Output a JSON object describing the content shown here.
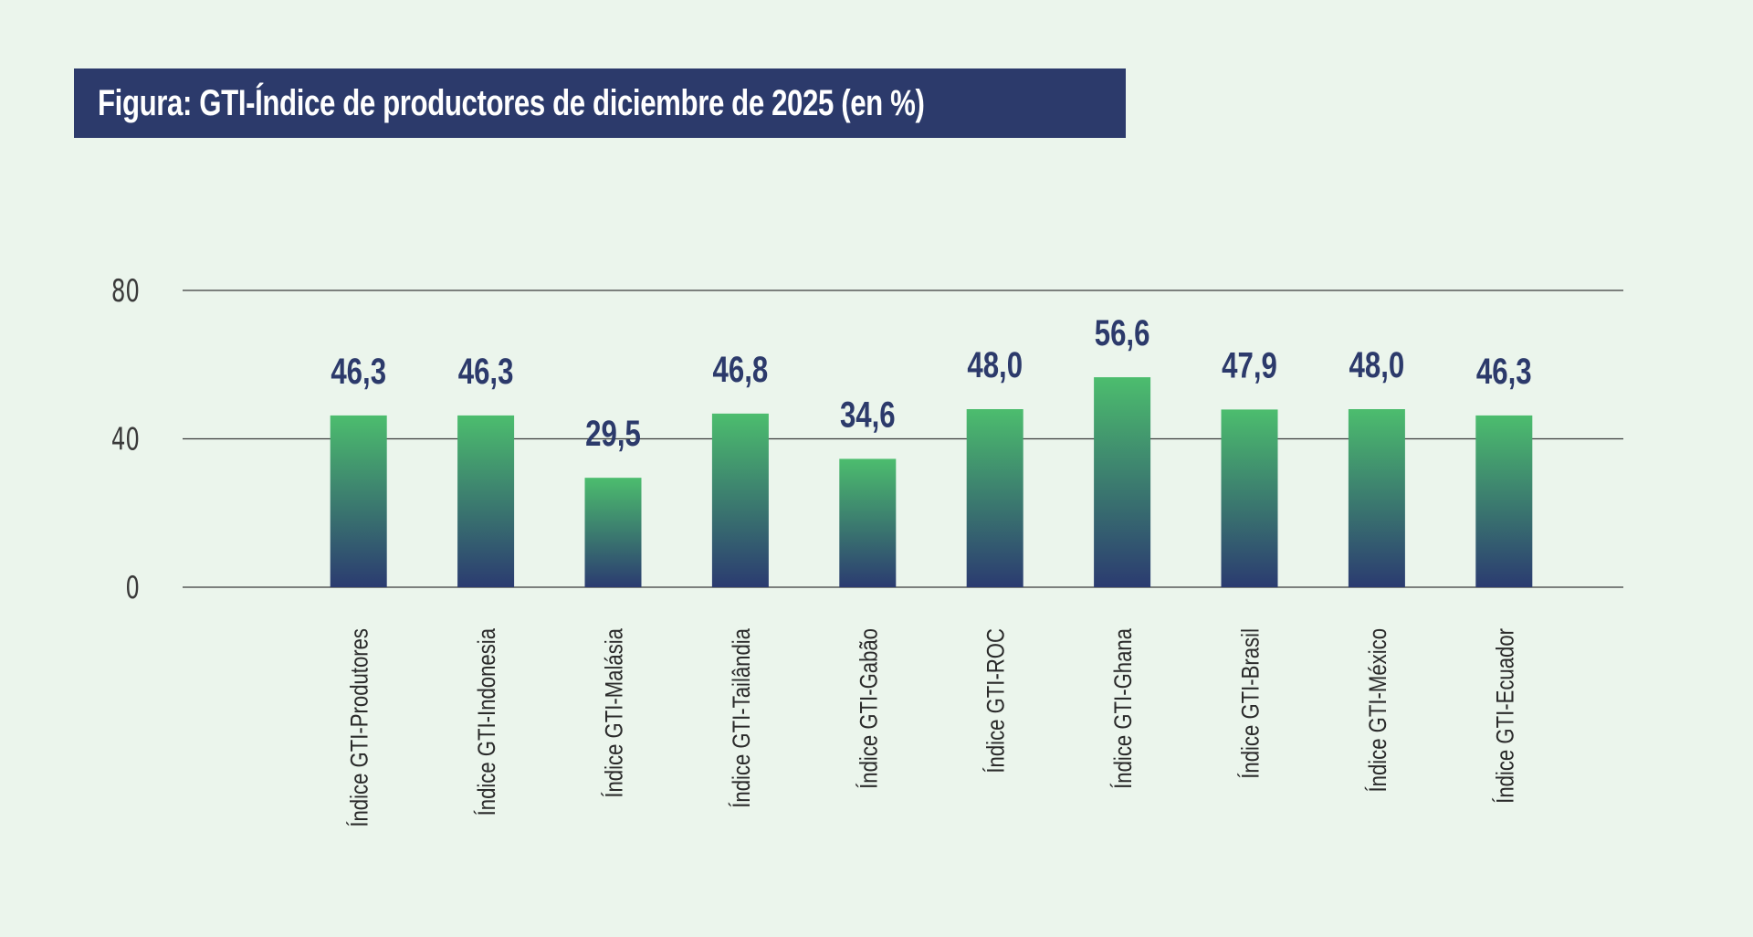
{
  "title": "Figura: GTI-Índice de productores de diciembre de 2025 (en %)",
  "colors": {
    "background": "#ebf5ec",
    "title_background": "#2c3a6b",
    "title_text": "#ffffff",
    "bar_top": "#4cbd6e",
    "bar_bottom": "#2b3b70",
    "value_label": "#2c3a6b",
    "gridline": "#3b3b3b"
  },
  "chart_data": {
    "type": "bar",
    "title": "Figura: GTI-Índice de productores de diciembre de 2025 (en %)",
    "categories": [
      "Índice GTI-Produtores",
      "Índice GTI-Indonesia",
      "Índice GTI-Malásia",
      "Índice GTI-Tailândia",
      "Índice GTI-Gabão",
      "Índice GTI-ROC",
      "Índice GTI-Ghana",
      "Índice GTI-Brasil",
      "Índice GTI-México",
      "Índice GTI-Ecuador"
    ],
    "values": [
      46.3,
      46.3,
      29.5,
      46.8,
      34.6,
      48.0,
      56.6,
      47.9,
      48.0,
      46.3
    ],
    "value_labels": [
      "46,3",
      "46,3",
      "29,5",
      "46,8",
      "34,6",
      "48,0",
      "56,6",
      "47,9",
      "48,0",
      "46,3"
    ],
    "ylim": [
      0,
      80
    ],
    "yticks": [
      0,
      40,
      80
    ],
    "ytick_labels": [
      "0",
      "40",
      "80"
    ],
    "xlabel": "",
    "ylabel": "",
    "grid": true,
    "legend": "none",
    "bar_fill": "vertical gradient green to navy"
  }
}
